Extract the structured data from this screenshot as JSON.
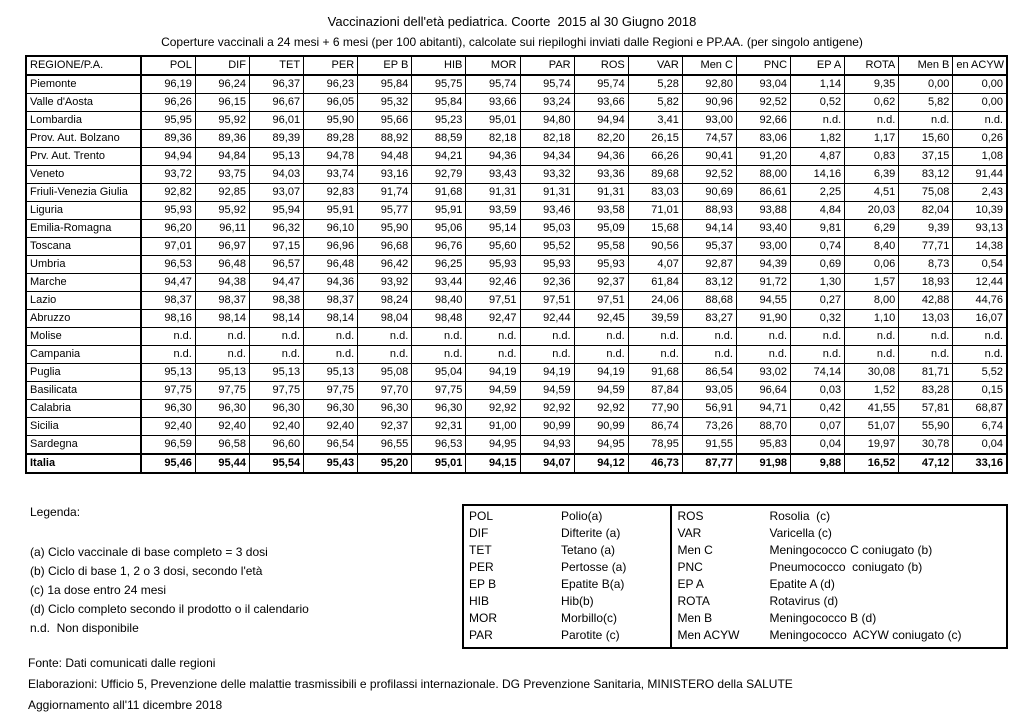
{
  "title": "Vaccinazioni dell'età pediatrica. Coorte  2015 al 30 Giugno 2018",
  "subtitle": "Coperture vaccinali a 24 mesi + 6 mesi (per 100 abitanti), calcolate sui riepiloghi inviati dalle Regioni e PP.AA. (per singolo antigene)",
  "table": {
    "columns": [
      "REGIONE/P.A.",
      "POL",
      "DIF",
      "TET",
      "PER",
      "EP B",
      "HIB",
      "MOR",
      "PAR",
      "ROS",
      "VAR",
      "Men C",
      "PNC",
      "EP A",
      "ROTA",
      "Men B",
      "en ACYW"
    ],
    "rows": [
      {
        "region": "Piemonte",
        "values": [
          "96,19",
          "96,24",
          "96,37",
          "96,23",
          "95,84",
          "95,75",
          "95,74",
          "95,74",
          "95,74",
          "5,28",
          "92,80",
          "93,04",
          "1,14",
          "9,35",
          "0,00",
          "0,00"
        ]
      },
      {
        "region": "Valle d'Aosta",
        "values": [
          "96,26",
          "96,15",
          "96,67",
          "96,05",
          "95,32",
          "95,84",
          "93,66",
          "93,24",
          "93,66",
          "5,82",
          "90,96",
          "92,52",
          "0,52",
          "0,62",
          "5,82",
          "0,00"
        ]
      },
      {
        "region": "Lombardia",
        "values": [
          "95,95",
          "95,92",
          "96,01",
          "95,90",
          "95,66",
          "95,23",
          "95,01",
          "94,80",
          "94,94",
          "3,41",
          "93,00",
          "92,66",
          "n.d.",
          "n.d.",
          "n.d.",
          "n.d."
        ]
      },
      {
        "region": "Prov. Aut. Bolzano",
        "values": [
          "89,36",
          "89,36",
          "89,39",
          "89,28",
          "88,92",
          "88,59",
          "82,18",
          "82,18",
          "82,20",
          "26,15",
          "74,57",
          "83,06",
          "1,82",
          "1,17",
          "15,60",
          "0,26"
        ]
      },
      {
        "region": "Prv. Aut. Trento",
        "values": [
          "94,94",
          "94,84",
          "95,13",
          "94,78",
          "94,48",
          "94,21",
          "94,36",
          "94,34",
          "94,36",
          "66,26",
          "90,41",
          "91,20",
          "4,87",
          "0,83",
          "37,15",
          "1,08"
        ]
      },
      {
        "region": "Veneto",
        "values": [
          "93,72",
          "93,75",
          "94,03",
          "93,74",
          "93,16",
          "92,79",
          "93,43",
          "93,32",
          "93,36",
          "89,68",
          "92,52",
          "88,00",
          "14,16",
          "6,39",
          "83,12",
          "91,44"
        ]
      },
      {
        "region": "Friuli-Venezia Giulia",
        "values": [
          "92,82",
          "92,85",
          "93,07",
          "92,83",
          "91,74",
          "91,68",
          "91,31",
          "91,31",
          "91,31",
          "83,03",
          "90,69",
          "86,61",
          "2,25",
          "4,51",
          "75,08",
          "2,43"
        ]
      },
      {
        "region": "Liguria",
        "values": [
          "95,93",
          "95,92",
          "95,94",
          "95,91",
          "95,77",
          "95,91",
          "93,59",
          "93,46",
          "93,58",
          "71,01",
          "88,93",
          "93,88",
          "4,84",
          "20,03",
          "82,04",
          "10,39"
        ]
      },
      {
        "region": "Emilia-Romagna",
        "values": [
          "96,20",
          "96,11",
          "96,32",
          "96,10",
          "95,90",
          "95,06",
          "95,14",
          "95,03",
          "95,09",
          "15,68",
          "94,14",
          "93,40",
          "9,81",
          "6,29",
          "9,39",
          "93,13"
        ]
      },
      {
        "region": "Toscana",
        "values": [
          "97,01",
          "96,97",
          "97,15",
          "96,96",
          "96,68",
          "96,76",
          "95,60",
          "95,52",
          "95,58",
          "90,56",
          "95,37",
          "93,00",
          "0,74",
          "8,40",
          "77,71",
          "14,38"
        ]
      },
      {
        "region": "Umbria",
        "values": [
          "96,53",
          "96,48",
          "96,57",
          "96,48",
          "96,42",
          "96,25",
          "95,93",
          "95,93",
          "95,93",
          "4,07",
          "92,87",
          "94,39",
          "0,69",
          "0,06",
          "8,73",
          "0,54"
        ]
      },
      {
        "region": "Marche",
        "values": [
          "94,47",
          "94,38",
          "94,47",
          "94,36",
          "93,92",
          "93,44",
          "92,46",
          "92,36",
          "92,37",
          "61,84",
          "83,12",
          "91,72",
          "1,30",
          "1,57",
          "18,93",
          "12,44"
        ]
      },
      {
        "region": "Lazio",
        "values": [
          "98,37",
          "98,37",
          "98,38",
          "98,37",
          "98,24",
          "98,40",
          "97,51",
          "97,51",
          "97,51",
          "24,06",
          "88,68",
          "94,55",
          "0,27",
          "8,00",
          "42,88",
          "44,76"
        ]
      },
      {
        "region": "Abruzzo",
        "values": [
          "98,16",
          "98,14",
          "98,14",
          "98,14",
          "98,04",
          "98,48",
          "92,47",
          "92,44",
          "92,45",
          "39,59",
          "83,27",
          "91,90",
          "0,32",
          "1,10",
          "13,03",
          "16,07"
        ]
      },
      {
        "region": "Molise",
        "values": [
          "n.d.",
          "n.d.",
          "n.d.",
          "n.d.",
          "n.d.",
          "n.d.",
          "n.d.",
          "n.d.",
          "n.d.",
          "n.d.",
          "n.d.",
          "n.d.",
          "n.d.",
          "n.d.",
          "n.d.",
          "n.d."
        ]
      },
      {
        "region": "Campania",
        "values": [
          "n.d.",
          "n.d.",
          "n.d.",
          "n.d.",
          "n.d.",
          "n.d.",
          "n.d.",
          "n.d.",
          "n.d.",
          "n.d.",
          "n.d.",
          "n.d.",
          "n.d.",
          "n.d.",
          "n.d.",
          "n.d."
        ]
      },
      {
        "region": "Puglia",
        "values": [
          "95,13",
          "95,13",
          "95,13",
          "95,13",
          "95,08",
          "95,04",
          "94,19",
          "94,19",
          "94,19",
          "91,68",
          "86,54",
          "93,02",
          "74,14",
          "30,08",
          "81,71",
          "5,52"
        ]
      },
      {
        "region": "Basilicata",
        "values": [
          "97,75",
          "97,75",
          "97,75",
          "97,75",
          "97,70",
          "97,75",
          "94,59",
          "94,59",
          "94,59",
          "87,84",
          "93,05",
          "96,64",
          "0,03",
          "1,52",
          "83,28",
          "0,15"
        ]
      },
      {
        "region": "Calabria",
        "values": [
          "96,30",
          "96,30",
          "96,30",
          "96,30",
          "96,30",
          "96,30",
          "92,92",
          "92,92",
          "92,92",
          "77,90",
          "56,91",
          "94,71",
          "0,42",
          "41,55",
          "57,81",
          "68,87"
        ]
      },
      {
        "region": "Sicilia",
        "values": [
          "92,40",
          "92,40",
          "92,40",
          "92,40",
          "92,37",
          "92,31",
          "91,00",
          "90,99",
          "90,99",
          "86,74",
          "73,26",
          "88,70",
          "0,07",
          "51,07",
          "55,90",
          "6,74"
        ]
      },
      {
        "region": "Sardegna",
        "values": [
          "96,59",
          "96,58",
          "96,60",
          "96,54",
          "96,55",
          "96,53",
          "94,95",
          "94,93",
          "94,95",
          "78,95",
          "91,55",
          "95,83",
          "0,04",
          "19,97",
          "30,78",
          "0,04"
        ]
      },
      {
        "region": "Italia",
        "bold": true,
        "values": [
          "95,46",
          "95,44",
          "95,54",
          "95,43",
          "95,20",
          "95,01",
          "94,15",
          "94,07",
          "94,12",
          "46,73",
          "87,77",
          "91,98",
          "9,88",
          "16,52",
          "47,12",
          "33,16"
        ]
      }
    ]
  },
  "legend": {
    "heading": "Legenda:",
    "notes": [
      "(a) Ciclo vaccinale di base completo = 3 dosi",
      "(b) Ciclo di base 1, 2 o 3 dosi, secondo l'età",
      "(c) 1a dose entro 24 mesi",
      "(d) Ciclo completo secondo il prodotto o il calendario",
      "n.d.  Non disponibile"
    ],
    "abbreviations_left": [
      [
        "POL",
        "Polio(a)"
      ],
      [
        "DIF",
        "Difterite (a)"
      ],
      [
        "TET",
        "Tetano (a)"
      ],
      [
        "PER",
        "Pertosse (a)"
      ],
      [
        "EP B",
        "Epatite B(a)"
      ],
      [
        "HIB",
        "Hib(b)"
      ],
      [
        "MOR",
        "Morbillo(c)"
      ],
      [
        "PAR",
        "Parotite (c)"
      ]
    ],
    "abbreviations_right": [
      [
        "ROS",
        "Rosolia  (c)"
      ],
      [
        "VAR",
        "Varicella (c)"
      ],
      [
        "Men C",
        "Meningococco C coniugato (b)"
      ],
      [
        "PNC",
        "Pneumococco  coniugato (b)"
      ],
      [
        "EP A",
        "Epatite A (d)"
      ],
      [
        "ROTA",
        "Rotavirus (d)"
      ],
      [
        "Men B",
        "Meningococco B (d)"
      ],
      [
        "Men ACYW",
        "Meningococco  ACYW coniugato (c)"
      ]
    ]
  },
  "footer": {
    "fonte": "Fonte: Dati comunicati dalle regioni",
    "elaborazioni": "Elaborazioni: Ufficio 5, Prevenzione delle malattie trasmissibili e profilassi internazionale. DG Prevenzione Sanitaria, MINISTERO della SALUTE",
    "aggiornamento": "Aggiornamento all'11 dicembre 2018"
  }
}
